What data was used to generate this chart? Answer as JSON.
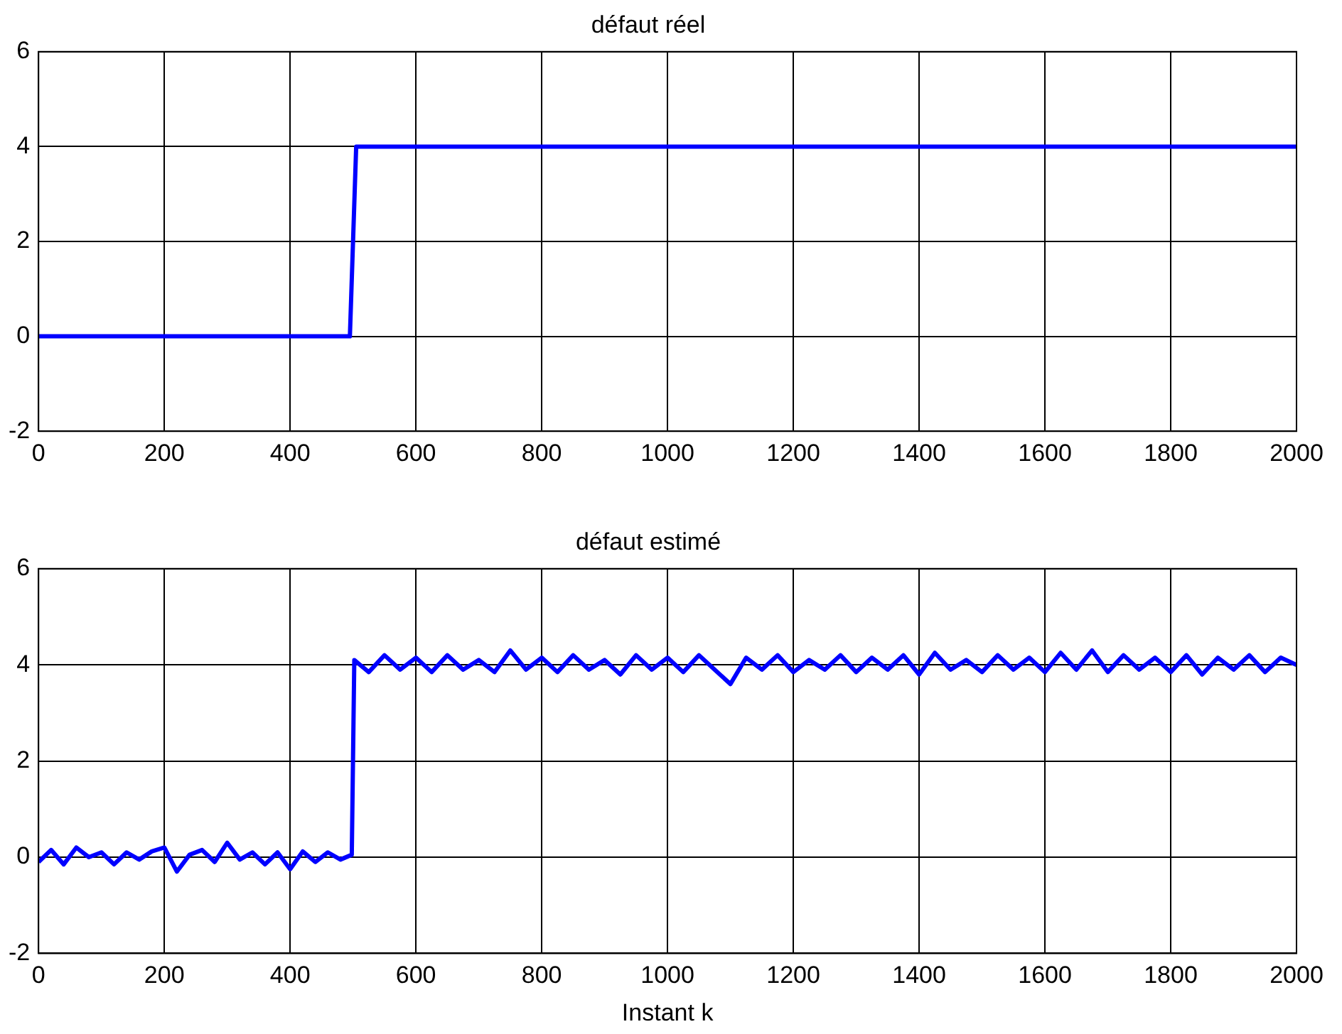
{
  "chart_data": [
    {
      "type": "line",
      "title": "défaut réel",
      "x": [
        0,
        495,
        505,
        2000
      ],
      "series": [
        {
          "color": "#0000ff",
          "values": [
            0,
            0,
            4,
            4
          ]
        }
      ],
      "xlim": [
        0,
        2000
      ],
      "xticks": [
        0,
        200,
        400,
        600,
        800,
        1000,
        1200,
        1400,
        1600,
        1800,
        2000
      ],
      "ylim": [
        -2,
        6
      ],
      "yticks": [
        -2,
        0,
        2,
        4,
        6
      ],
      "grid": true,
      "legend": false,
      "marker": "none",
      "line_style": "solid"
    },
    {
      "type": "line",
      "title": "défaut estimé",
      "xlabel": "Instant k",
      "x": [
        0,
        20,
        40,
        60,
        80,
        100,
        120,
        140,
        160,
        180,
        200,
        220,
        240,
        260,
        280,
        300,
        320,
        340,
        360,
        380,
        400,
        420,
        440,
        460,
        480,
        498,
        502,
        525,
        550,
        575,
        600,
        625,
        650,
        675,
        700,
        725,
        750,
        775,
        800,
        825,
        850,
        875,
        900,
        925,
        950,
        975,
        1000,
        1025,
        1050,
        1075,
        1100,
        1125,
        1150,
        1175,
        1200,
        1225,
        1250,
        1275,
        1300,
        1325,
        1350,
        1375,
        1400,
        1425,
        1450,
        1475,
        1500,
        1525,
        1550,
        1575,
        1600,
        1625,
        1650,
        1675,
        1700,
        1725,
        1750,
        1775,
        1800,
        1825,
        1850,
        1875,
        1900,
        1925,
        1950,
        1975,
        2000
      ],
      "series": [
        {
          "color": "#0000ff",
          "values": [
            -0.1,
            0.15,
            -0.15,
            0.2,
            0.0,
            0.1,
            -0.15,
            0.1,
            -0.05,
            0.12,
            0.2,
            -0.3,
            0.05,
            0.15,
            -0.1,
            0.3,
            -0.05,
            0.1,
            -0.15,
            0.1,
            -0.25,
            0.12,
            -0.1,
            0.1,
            -0.05,
            0.05,
            4.1,
            3.85,
            4.2,
            3.9,
            4.15,
            3.85,
            4.2,
            3.9,
            4.1,
            3.85,
            4.3,
            3.9,
            4.15,
            3.85,
            4.2,
            3.9,
            4.1,
            3.8,
            4.2,
            3.9,
            4.15,
            3.85,
            4.2,
            3.9,
            3.6,
            4.15,
            3.9,
            4.2,
            3.85,
            4.1,
            3.9,
            4.2,
            3.85,
            4.15,
            3.9,
            4.2,
            3.8,
            4.25,
            3.9,
            4.1,
            3.85,
            4.2,
            3.9,
            4.15,
            3.85,
            4.25,
            3.9,
            4.3,
            3.85,
            4.2,
            3.9,
            4.15,
            3.85,
            4.2,
            3.8,
            4.15,
            3.9,
            4.2,
            3.85,
            4.15,
            4.0
          ]
        }
      ],
      "xlim": [
        0,
        2000
      ],
      "xticks": [
        0,
        200,
        400,
        600,
        800,
        1000,
        1200,
        1400,
        1600,
        1800,
        2000
      ],
      "ylim": [
        -2,
        6
      ],
      "yticks": [
        -2,
        0,
        2,
        4,
        6
      ],
      "grid": true,
      "legend": false,
      "marker": "none",
      "line_style": "solid"
    }
  ]
}
